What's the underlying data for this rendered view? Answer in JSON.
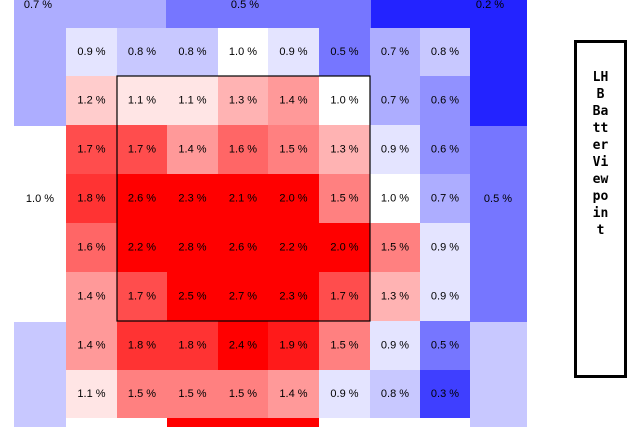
{
  "chart_data": {
    "type": "heatmap",
    "title": "",
    "viewpoint_label": "LHB Batter Viewpoint",
    "color_scale": {
      "low": "#2323ff",
      "mid": "#ffffff",
      "high": "#ff0000",
      "mid_value": 1.0
    },
    "inner_grid": {
      "rows": [
        [
          0.9,
          0.8,
          0.8,
          1.0,
          0.9,
          0.5,
          0.7,
          0.8
        ],
        [
          1.2,
          1.1,
          1.1,
          1.3,
          1.4,
          1.0,
          0.7,
          0.6
        ],
        [
          1.7,
          1.7,
          1.4,
          1.6,
          1.5,
          1.3,
          0.9,
          0.6
        ],
        [
          1.8,
          2.6,
          2.3,
          2.1,
          2.0,
          1.5,
          1.0,
          0.7
        ],
        [
          1.6,
          2.2,
          2.8,
          2.6,
          2.2,
          2.0,
          1.5,
          0.9
        ],
        [
          1.4,
          1.7,
          2.5,
          2.7,
          2.3,
          1.7,
          1.3,
          0.9
        ],
        [
          1.4,
          1.8,
          1.8,
          2.4,
          1.9,
          1.5,
          0.9,
          0.5
        ],
        [
          1.1,
          1.5,
          1.5,
          1.5,
          1.4,
          0.9,
          0.8,
          0.3
        ]
      ]
    },
    "outer_regions": {
      "top_left": 0.7,
      "top_middle": 0.5,
      "top_right": 0.2,
      "left": 1.0,
      "right": 0.5
    },
    "value_suffix": " %",
    "strike_zone": "inner 5x5 block (rows 2-6, columns 2-6)"
  }
}
